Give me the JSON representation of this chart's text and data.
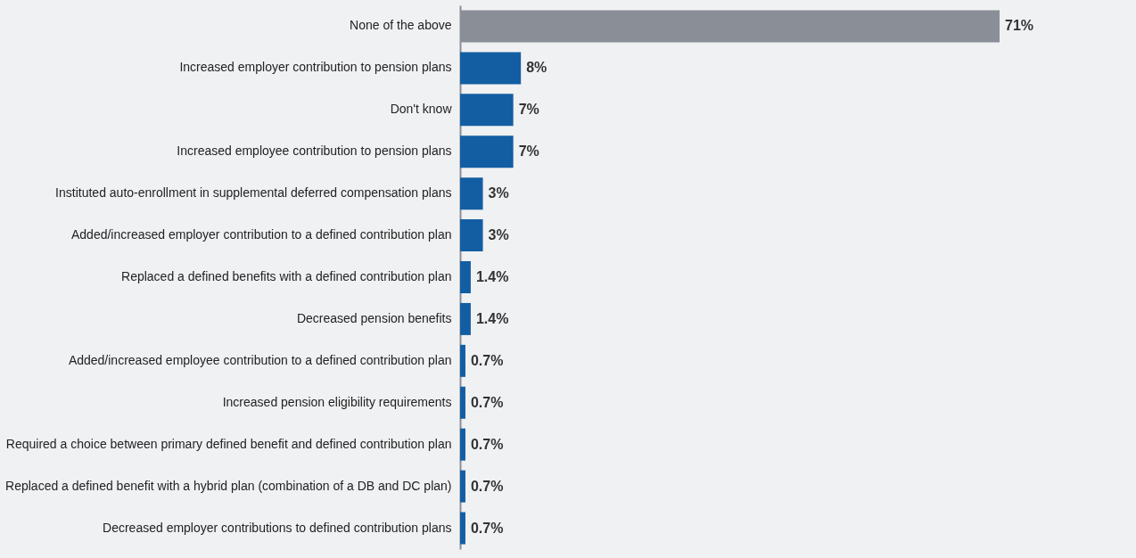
{
  "chart_data": {
    "type": "bar",
    "orientation": "horizontal",
    "categories": [
      "None of the above",
      "Increased employer contribution to pension plans",
      "Don't know",
      "Increased employee contribution to pension plans",
      "Instituted auto-enrollment in supplemental deferred compensation plans",
      "Added/increased employer contribution to a defined contribution plan",
      "Replaced a defined benefits with a defined contribution plan",
      "Decreased pension benefits",
      "Added/increased employee contribution to a defined contribution plan",
      "Increased pension eligibility requirements",
      "Required a choice between primary defined benefit and defined contribution plan",
      "Replaced a defined benefit with a hybrid plan (combination of a DB and DC plan)",
      "Decreased employer contributions to defined contribution plans"
    ],
    "values": [
      71,
      8,
      7,
      7,
      3,
      3,
      1.4,
      1.4,
      0.7,
      0.7,
      0.7,
      0.7,
      0.7
    ],
    "value_labels": [
      "71%",
      "8%",
      "7%",
      "7%",
      "3%",
      "3%",
      "1.4%",
      "1.4%",
      "0.7%",
      "0.7%",
      "0.7%",
      "0.7%",
      "0.7%"
    ],
    "colors": [
      "#8a8e97",
      "#135ea2",
      "#135ea2",
      "#135ea2",
      "#135ea2",
      "#135ea2",
      "#135ea2",
      "#135ea2",
      "#135ea2",
      "#135ea2",
      "#135ea2",
      "#135ea2",
      "#135ea2"
    ],
    "data_labels": true
  }
}
